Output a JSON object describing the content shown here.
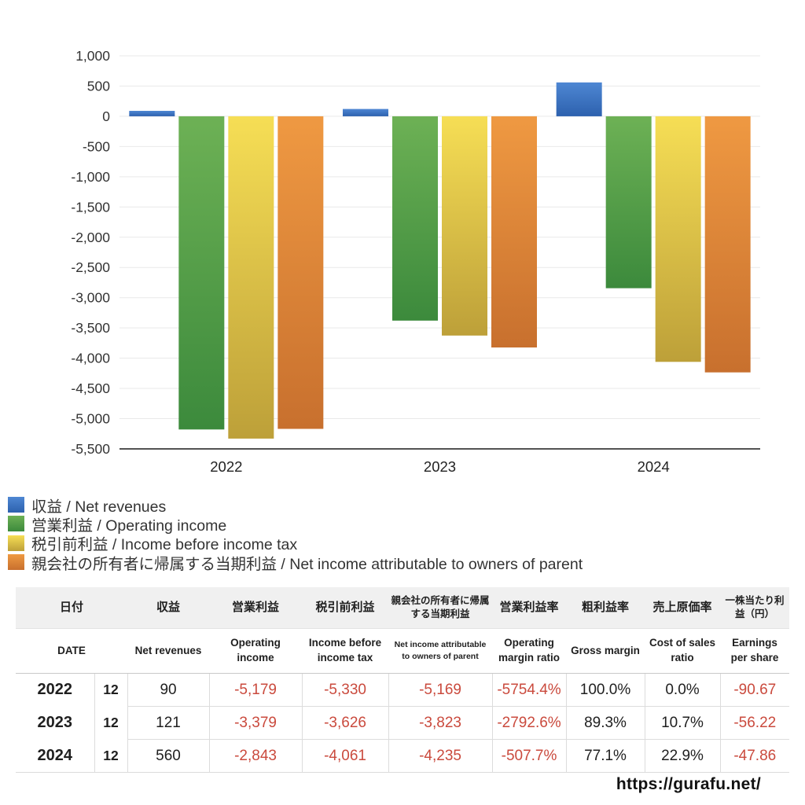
{
  "chart_data": {
    "type": "bar",
    "title": "",
    "xlabel": "",
    "ylabel": "",
    "categories": [
      "2022",
      "2023",
      "2024"
    ],
    "series": [
      {
        "key": "net-revenues",
        "name": "収益 / Net revenues",
        "values": [
          90,
          121,
          560
        ],
        "color_top": "#4e87d3",
        "color_bottom": "#2d61ae"
      },
      {
        "key": "operating-income",
        "name": "営業利益 / Operating income",
        "values": [
          -5179,
          -3379,
          -2843
        ],
        "color_top": "#6db155",
        "color_bottom": "#3c8a3c"
      },
      {
        "key": "income-before-income-tax",
        "name": "税引前利益 / Income before income tax",
        "values": [
          -5330,
          -3626,
          -4061
        ],
        "color_top": "#f6de55",
        "color_bottom": "#bda039"
      },
      {
        "key": "net-income",
        "name": "親会社の所有者に帰属する当期利益 / Net income attributable to owners of parent",
        "values": [
          -5169,
          -3823,
          -4235
        ],
        "color_top": "#ef9942",
        "color_bottom": "#c8702e"
      }
    ],
    "ylim": [
      -5500,
      1000
    ],
    "ytick_step": 500,
    "grid": true,
    "legend_position": "bottom-left"
  },
  "table": {
    "columns": [
      {
        "key": "date",
        "ja": "日付",
        "en": "DATE",
        "colspan": 2
      },
      {
        "key": "net-revenues",
        "ja": "収益",
        "en": "Net revenues"
      },
      {
        "key": "operating-income",
        "ja": "営業利益",
        "en": "Operating income"
      },
      {
        "key": "income-before-income-tax",
        "ja": "税引前利益",
        "en": "Income before income tax"
      },
      {
        "key": "net-income-attributable-to-owners-of-parent",
        "ja": "親会社の所有者に帰属する当期利益",
        "en": "Net income attributable to owners of parent",
        "small_ja": true,
        "small_en": true
      },
      {
        "key": "operating-margin-ratio",
        "ja": "営業利益率",
        "en": "Operating margin ratio"
      },
      {
        "key": "gross-margin",
        "ja": "粗利益率",
        "en": "Gross margin"
      },
      {
        "key": "cost-of-sales-ratio",
        "ja": "売上原価率",
        "en": "Cost of sales ratio"
      },
      {
        "key": "earnings-per-share",
        "ja": "一株当たり利益（円）",
        "en": "Earnings per share",
        "small_ja": true
      }
    ],
    "rows": [
      {
        "year": "2022",
        "month": "12",
        "values": [
          "90",
          "-5,179",
          "-5,330",
          "-5,169",
          "-5754.4%",
          "100.0%",
          "0.0%",
          "-90.67"
        ]
      },
      {
        "year": "2023",
        "month": "12",
        "values": [
          "121",
          "-3,379",
          "-3,626",
          "-3,823",
          "-2792.6%",
          "89.3%",
          "10.7%",
          "-56.22"
        ]
      },
      {
        "year": "2024",
        "month": "12",
        "values": [
          "560",
          "-2,843",
          "-4,061",
          "-4,235",
          "-507.7%",
          "77.1%",
          "22.9%",
          "-47.86"
        ]
      }
    ]
  },
  "footer": {
    "url": "https://gurafu.net/"
  }
}
